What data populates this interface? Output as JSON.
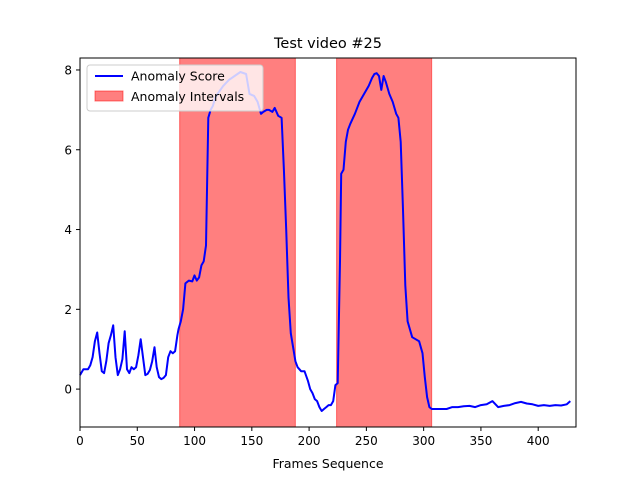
{
  "chart_data": {
    "type": "line",
    "title": "Test video #25",
    "xlabel": "Frames Sequence",
    "ylabel": "",
    "xlim": [
      0,
      433
    ],
    "ylim": [
      -0.95,
      8.3
    ],
    "xticks": [
      0,
      50,
      100,
      150,
      200,
      250,
      300,
      350,
      400
    ],
    "yticks": [
      0,
      2,
      4,
      6,
      8
    ],
    "grid": false,
    "legend_position": "upper left",
    "legend": [
      {
        "label": "Anomaly Score",
        "kind": "line"
      },
      {
        "label": "Anomaly Intervals",
        "kind": "patch"
      }
    ],
    "colors": {
      "line": "#0000ff",
      "interval": "#ff0000",
      "interval_opacity": 0.5
    },
    "intervals": [
      [
        87,
        188
      ],
      [
        224,
        307
      ]
    ],
    "series": [
      {
        "name": "Anomaly Score",
        "x": [
          0,
          3,
          7,
          9,
          11,
          13,
          15,
          17,
          19,
          21,
          23,
          25,
          27,
          29,
          31,
          33,
          35,
          37,
          39,
          41,
          43,
          45,
          47,
          49,
          51,
          53,
          55,
          57,
          59,
          61,
          63,
          65,
          67,
          69,
          71,
          73,
          75,
          77,
          79,
          81,
          83,
          85,
          86,
          88,
          90,
          92,
          95,
          98,
          100,
          102,
          104,
          106,
          108,
          110,
          112,
          114,
          116,
          118,
          120,
          125,
          130,
          135,
          140,
          145,
          148,
          152,
          155,
          158,
          160,
          163,
          165,
          168,
          170,
          173,
          176,
          178,
          180,
          182,
          184,
          186,
          188,
          190,
          193,
          196,
          199,
          201,
          203,
          205,
          207,
          209,
          211,
          213,
          215,
          217,
          219,
          221,
          223,
          225,
          227,
          228,
          230,
          232,
          234,
          236,
          240,
          244,
          248,
          252,
          255,
          257,
          259,
          261,
          263,
          265,
          267,
          270,
          273,
          276,
          278,
          280,
          282,
          284,
          286,
          288,
          290,
          293,
          296,
          299,
          301,
          303,
          305,
          307,
          310,
          315,
          320,
          325,
          330,
          335,
          340,
          345,
          350,
          355,
          360,
          365,
          370,
          375,
          380,
          385,
          390,
          395,
          400,
          405,
          410,
          415,
          420,
          425,
          428
        ],
        "y": [
          0.35,
          0.5,
          0.5,
          0.6,
          0.8,
          1.2,
          1.42,
          0.9,
          0.45,
          0.4,
          0.7,
          1.15,
          1.35,
          1.6,
          0.8,
          0.35,
          0.5,
          0.75,
          1.45,
          0.5,
          0.4,
          0.55,
          0.5,
          0.55,
          0.85,
          1.25,
          0.8,
          0.35,
          0.38,
          0.48,
          0.7,
          1.05,
          0.55,
          0.3,
          0.25,
          0.28,
          0.35,
          0.8,
          0.95,
          0.9,
          0.95,
          1.35,
          1.5,
          1.7,
          2.0,
          2.65,
          2.72,
          2.7,
          2.85,
          2.72,
          2.8,
          3.1,
          3.2,
          3.6,
          6.8,
          7.0,
          7.1,
          7.3,
          7.4,
          7.6,
          7.75,
          7.85,
          7.95,
          7.9,
          7.4,
          7.35,
          7.2,
          6.9,
          6.95,
          7.0,
          7.0,
          6.95,
          7.05,
          6.85,
          6.8,
          5.5,
          4.0,
          2.3,
          1.4,
          1.05,
          0.7,
          0.55,
          0.45,
          0.45,
          0.2,
          0.0,
          -0.1,
          -0.25,
          -0.3,
          -0.45,
          -0.55,
          -0.5,
          -0.45,
          -0.4,
          -0.4,
          -0.3,
          0.1,
          0.15,
          3.2,
          5.4,
          5.5,
          6.2,
          6.5,
          6.65,
          6.9,
          7.2,
          7.4,
          7.6,
          7.8,
          7.9,
          7.92,
          7.85,
          7.5,
          7.85,
          7.7,
          7.4,
          7.2,
          6.9,
          6.8,
          6.2,
          4.5,
          2.6,
          1.7,
          1.5,
          1.3,
          1.25,
          1.2,
          0.9,
          0.3,
          -0.2,
          -0.45,
          -0.5,
          -0.5,
          -0.5,
          -0.5,
          -0.45,
          -0.45,
          -0.43,
          -0.42,
          -0.45,
          -0.4,
          -0.38,
          -0.3,
          -0.45,
          -0.42,
          -0.4,
          -0.35,
          -0.32,
          -0.36,
          -0.38,
          -0.42,
          -0.4,
          -0.42,
          -0.4,
          -0.41,
          -0.38,
          -0.3
        ]
      }
    ]
  }
}
